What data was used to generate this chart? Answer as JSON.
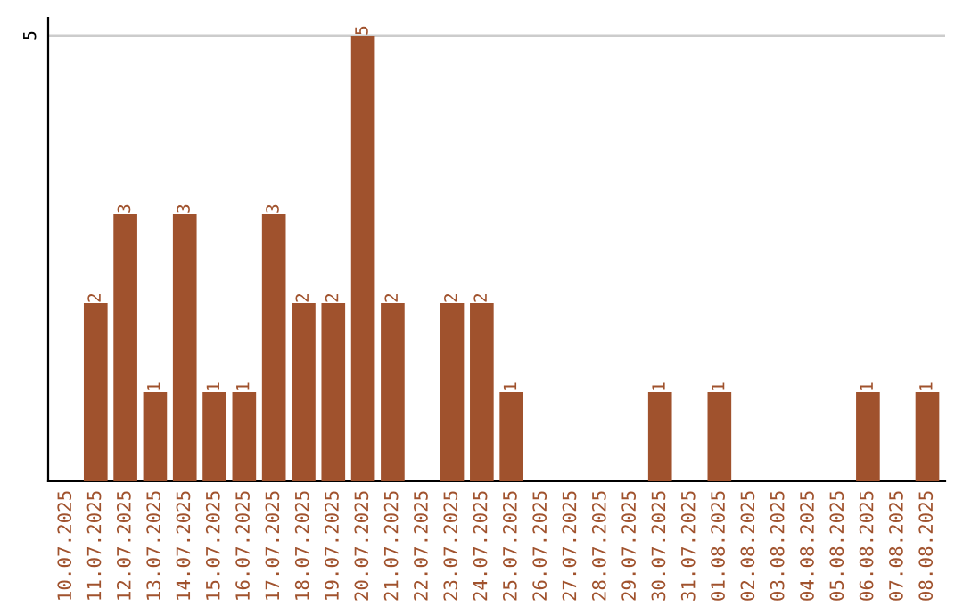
{
  "chart_data": {
    "type": "bar",
    "categories": [
      "10.07.2025",
      "11.07.2025",
      "12.07.2025",
      "13.07.2025",
      "14.07.2025",
      "15.07.2025",
      "16.07.2025",
      "17.07.2025",
      "18.07.2025",
      "19.07.2025",
      "20.07.2025",
      "21.07.2025",
      "22.07.2025",
      "23.07.2025",
      "24.07.2025",
      "25.07.2025",
      "26.07.2025",
      "27.07.2025",
      "28.07.2025",
      "29.07.2025",
      "30.07.2025",
      "31.07.2025",
      "01.08.2025",
      "02.08.2025",
      "03.08.2025",
      "04.08.2025",
      "05.08.2025",
      "06.08.2025",
      "07.08.2025",
      "08.08.2025"
    ],
    "values": [
      0,
      2,
      3,
      1,
      3,
      1,
      1,
      3,
      2,
      2,
      5,
      2,
      0,
      2,
      2,
      1,
      0,
      0,
      0,
      0,
      1,
      0,
      1,
      0,
      0,
      0,
      0,
      1,
      0,
      1
    ],
    "value_labels": [
      null,
      "2",
      "3",
      "1",
      "3",
      "1",
      "1",
      "3",
      "2",
      "2",
      "5",
      "2",
      null,
      "2",
      "2",
      "1",
      null,
      null,
      null,
      null,
      "1",
      null,
      "1",
      null,
      null,
      null,
      null,
      "1",
      null,
      "1"
    ],
    "color": "#a0522d",
    "ylim": [
      0,
      5.2
    ],
    "yticks": [
      5
    ],
    "grid": "y"
  }
}
